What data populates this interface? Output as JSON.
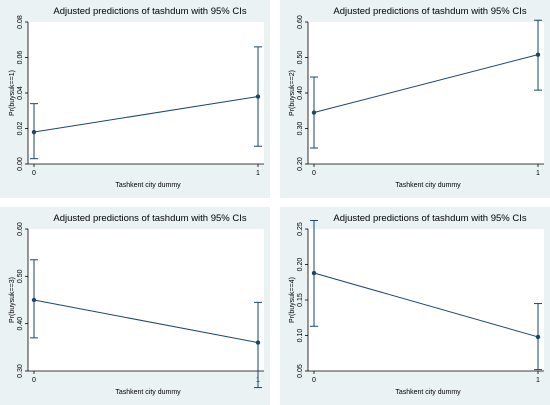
{
  "chart_data": [
    {
      "type": "line",
      "title": "Adjusted predictions of tashdum with 95% CIs",
      "xlabel": "Tashkent city dummy",
      "ylabel": "Pr(buysuk==1)",
      "x": [
        0,
        1
      ],
      "x_ticks": [
        "0",
        "1"
      ],
      "y": [
        0.018,
        0.038
      ],
      "ci_low": [
        0.003,
        0.01
      ],
      "ci_high": [
        0.034,
        0.066
      ],
      "ylim": [
        0,
        0.08
      ],
      "y_ticks": [
        "0.00",
        "0.02",
        "0.04",
        "0.06",
        "0.08"
      ],
      "grid": false
    },
    {
      "type": "line",
      "title": "Adjusted predictions of tashdum with 95% CIs",
      "xlabel": "Tashkent city dummy",
      "ylabel": "Pr(buysuk==2)",
      "x": [
        0,
        1
      ],
      "x_ticks": [
        "0",
        "1"
      ],
      "y": [
        0.345,
        0.508
      ],
      "ci_low": [
        0.245,
        0.408
      ],
      "ci_high": [
        0.445,
        0.605
      ],
      "ylim": [
        0.2,
        0.6
      ],
      "y_ticks": [
        "0.20",
        "0.30",
        "0.40",
        "0.50",
        "0.60"
      ],
      "grid": false
    },
    {
      "type": "line",
      "title": "Adjusted predictions of tashdum with 95% CIs",
      "xlabel": "Tashkent city dummy",
      "ylabel": "Pr(buysuk==3)",
      "x": [
        0,
        1
      ],
      "x_ticks": [
        "0",
        "1"
      ],
      "y": [
        0.45,
        0.36
      ],
      "ci_low": [
        0.37,
        0.265
      ],
      "ci_high": [
        0.535,
        0.445
      ],
      "ylim": [
        0.3,
        0.6
      ],
      "y_ticks": [
        "0.30",
        "0.40",
        "0.50",
        "0.60"
      ],
      "grid": false
    },
    {
      "type": "line",
      "title": "Adjusted predictions of tashdum with 95% CIs",
      "xlabel": "Tashkent city dummy",
      "ylabel": "Pr(buysuk==4)",
      "x": [
        0,
        1
      ],
      "x_ticks": [
        "0",
        "1"
      ],
      "y": [
        0.188,
        0.098
      ],
      "ci_low": [
        0.113,
        0.052
      ],
      "ci_high": [
        0.262,
        0.145
      ],
      "ylim": [
        0.05,
        0.25
      ],
      "y_ticks": [
        "0.05",
        "0.10",
        "0.15",
        "0.20",
        "0.25"
      ],
      "grid": false
    }
  ],
  "colors": {
    "panel_background": "#eaf2f3",
    "plot_background": "#ffffff",
    "line": "#1a476f",
    "text": "#000000"
  }
}
